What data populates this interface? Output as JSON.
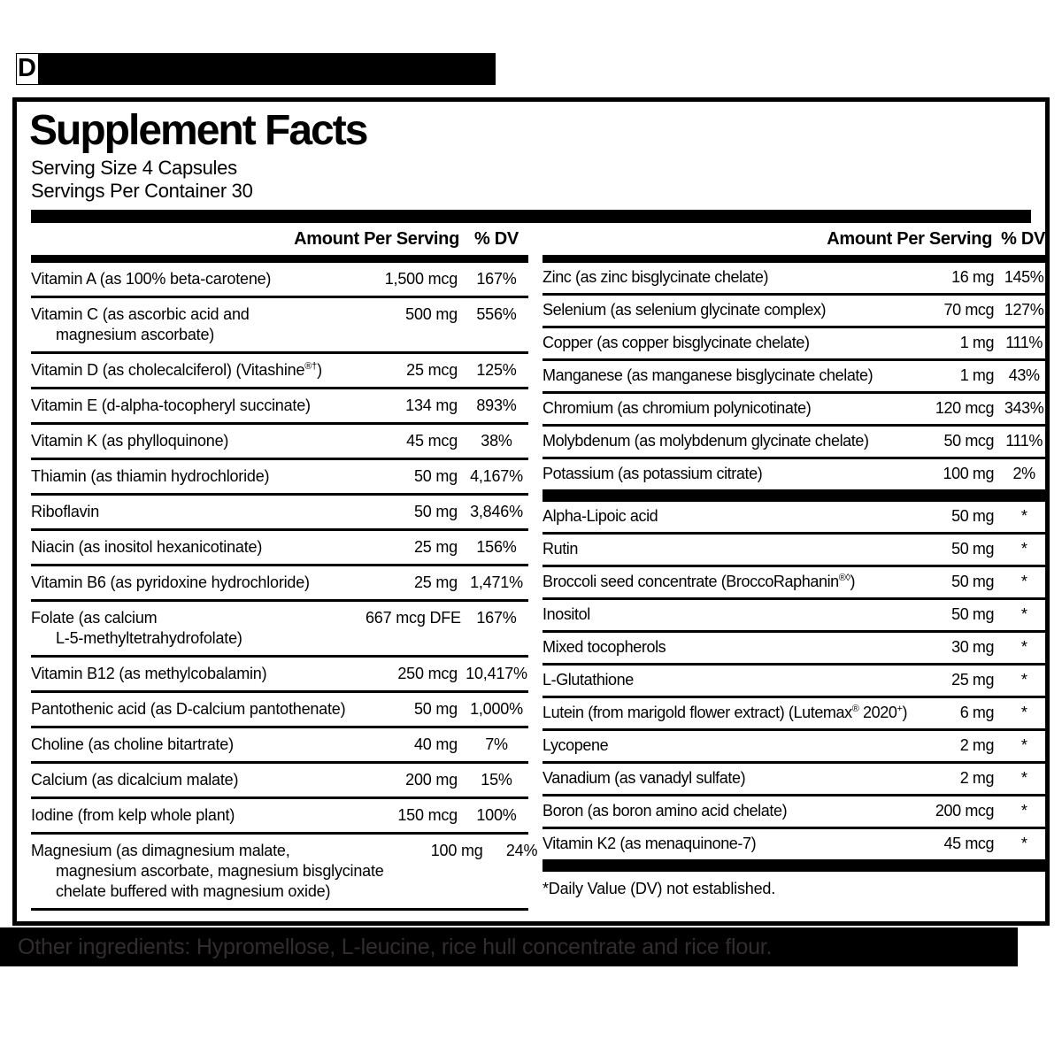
{
  "top_redaction": {
    "visible_letter": "D"
  },
  "panel": {
    "title": "Supplement Facts",
    "serving_size": "Serving Size 4 Capsules",
    "servings_per_container": "Servings Per Container 30",
    "amount_header": "Amount Per Serving",
    "dv_header": "% DV",
    "footnote": "*Daily Value (DV) not established."
  },
  "left_rows": [
    {
      "lines": [
        "Vitamin A (as 100% beta-carotene)"
      ],
      "amount": "1,500 mcg",
      "dv": "167%"
    },
    {
      "lines": [
        "Vitamin C (as ascorbic acid and",
        "magnesium ascorbate)"
      ],
      "amount": "500 mg",
      "dv": "556%"
    },
    {
      "lines": [
        [
          {
            "t": "Vitamin D (as cholecalciferol) (Vitashine"
          },
          {
            "t": "®†",
            "sup": true
          },
          {
            "t": ")"
          }
        ]
      ],
      "amount": "25 mcg",
      "dv": "125%"
    },
    {
      "lines": [
        "Vitamin E (d-alpha-tocopheryl succinate)"
      ],
      "amount": "134 mg",
      "dv": "893%"
    },
    {
      "lines": [
        "Vitamin K (as phylloquinone)"
      ],
      "amount": "45 mcg",
      "dv": "38%"
    },
    {
      "lines": [
        "Thiamin (as thiamin hydrochloride)"
      ],
      "amount": "50 mg",
      "dv": "4,167%"
    },
    {
      "lines": [
        "Riboflavin"
      ],
      "amount": "50 mg",
      "dv": "3,846%"
    },
    {
      "lines": [
        "Niacin (as inositol hexanicotinate)"
      ],
      "amount": "25 mg",
      "dv": "156%"
    },
    {
      "lines": [
        "Vitamin B6 (as pyridoxine hydrochloride)"
      ],
      "amount": "25 mg",
      "dv": "1,471%"
    },
    {
      "lines": [
        "Folate (as calcium",
        "L-5-methyltetrahydrofolate)"
      ],
      "amount": "667 mcg DFE",
      "dv": "167%"
    },
    {
      "lines": [
        "Vitamin B12 (as methylcobalamin)"
      ],
      "amount": "250 mcg",
      "dv": "10,417%"
    },
    {
      "lines": [
        "Pantothenic acid (as D-calcium pantothenate)"
      ],
      "amount": "50 mg",
      "dv": "1,000%"
    },
    {
      "lines": [
        "Choline (as choline bitartrate)"
      ],
      "amount": "40 mg",
      "dv": "7%"
    },
    {
      "lines": [
        "Calcium (as dicalcium malate)"
      ],
      "amount": "200 mg",
      "dv": "15%"
    },
    {
      "lines": [
        "Iodine (from kelp whole plant)"
      ],
      "amount": "150 mcg",
      "dv": "100%"
    },
    {
      "lines": [
        "Magnesium (as dimagnesium malate,",
        "magnesium ascorbate, magnesium bisglycinate",
        "chelate buffered with magnesium oxide)"
      ],
      "amount": "100 mg",
      "dv": "24%"
    }
  ],
  "right_rows_minerals": [
    {
      "lines": [
        "Zinc (as zinc bisglycinate chelate)"
      ],
      "amount": "16 mg",
      "dv": "145%"
    },
    {
      "lines": [
        "Selenium (as selenium glycinate complex)"
      ],
      "amount": "70 mcg",
      "dv": "127%"
    },
    {
      "lines": [
        "Copper (as copper bisglycinate chelate)"
      ],
      "amount": "1 mg",
      "dv": "111%"
    },
    {
      "lines": [
        "Manganese (as manganese bisglycinate chelate)"
      ],
      "amount": "1 mg",
      "dv": "43%"
    },
    {
      "lines": [
        "Chromium (as chromium polynicotinate)"
      ],
      "amount": "120 mcg",
      "dv": "343%"
    },
    {
      "lines": [
        "Molybdenum (as molybdenum glycinate chelate)"
      ],
      "amount": "50 mcg",
      "dv": "111%"
    },
    {
      "lines": [
        "Potassium (as potassium citrate)"
      ],
      "amount": "100 mg",
      "dv": "2%"
    }
  ],
  "right_rows_other": [
    {
      "lines": [
        "Alpha-Lipoic acid"
      ],
      "amount": "50 mg",
      "dv": "*"
    },
    {
      "lines": [
        "Rutin"
      ],
      "amount": "50 mg",
      "dv": "*"
    },
    {
      "lines": [
        [
          {
            "t": "Broccoli seed concentrate (BroccoRaphanin"
          },
          {
            "t": "®◊",
            "sup": true
          },
          {
            "t": ")"
          }
        ]
      ],
      "amount": "50 mg",
      "dv": "*"
    },
    {
      "lines": [
        "Inositol"
      ],
      "amount": "50 mg",
      "dv": "*"
    },
    {
      "lines": [
        "Mixed tocopherols"
      ],
      "amount": "30 mg",
      "dv": "*"
    },
    {
      "lines": [
        "L-Glutathione"
      ],
      "amount": "25 mg",
      "dv": "*"
    },
    {
      "lines": [
        [
          {
            "t": "Lutein (from marigold flower extract) (Lutemax"
          },
          {
            "t": "®",
            "sup": true
          },
          {
            "t": " 2020"
          },
          {
            "t": "+",
            "sup": true
          },
          {
            "t": ")"
          }
        ]
      ],
      "amount": "6 mg",
      "dv": "*"
    },
    {
      "lines": [
        "Lycopene"
      ],
      "amount": "2 mg",
      "dv": "*"
    },
    {
      "lines": [
        "Vanadium (as vanadyl sulfate)"
      ],
      "amount": "2 mg",
      "dv": "*"
    },
    {
      "lines": [
        "Boron (as boron amino acid chelate)"
      ],
      "amount": "200 mcg",
      "dv": "*"
    },
    {
      "lines": [
        "Vitamin K2 (as menaquinone-7)"
      ],
      "amount": "45 mcg",
      "dv": "*"
    }
  ],
  "other_ingredients": "Other ingredients: Hypromellose, L-leucine, rice hull concentrate and rice flour.",
  "colors": {
    "ink": "#000000",
    "background": "#ffffff",
    "muted_ingredients_text": "#322d30"
  }
}
